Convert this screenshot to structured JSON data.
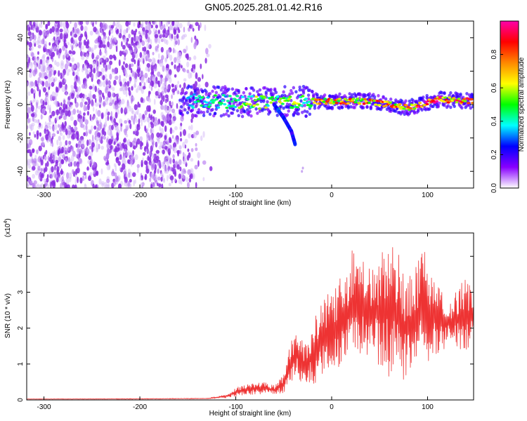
{
  "title": "GN05.2025.281.01.42.R16",
  "colors": {
    "signal_line": "#ee3333",
    "noise_purple": "#8a2be2",
    "axis": "#000000"
  },
  "chart_data": [
    {
      "type": "heatmap",
      "name": "spectrogram",
      "xlabel": "Height of straight line (km)",
      "ylabel": "Frequency (Hz)",
      "xlim": [
        -318,
        148
      ],
      "ylim": [
        -50,
        50
      ],
      "xticks": [
        -300,
        -200,
        -100,
        0,
        100
      ],
      "yticks": [
        -40,
        -20,
        0,
        20,
        40
      ],
      "colorbar": {
        "label": "Normalized spectral amplitude",
        "range": [
          0,
          1
        ],
        "ticks": [
          "0.0",
          "0.2",
          "0.4",
          "0.6",
          "0.8"
        ],
        "colormap": [
          "#ffffff",
          "#8800ff",
          "#0000ff",
          "#00ffff",
          "#00ff00",
          "#ffff00",
          "#ff8800",
          "#ff0000",
          "#ff00aa"
        ]
      },
      "regions": [
        {
          "description": "noise",
          "x_range": [
            -318,
            -130
          ],
          "y_range": [
            -50,
            50
          ],
          "amplitude": 0.15
        },
        {
          "description": "signal band",
          "x_range": [
            -155,
            148
          ],
          "center_frequency_hz": [
            [
              -155,
              2
            ],
            [
              -120,
              2
            ],
            [
              -80,
              1
            ],
            [
              -40,
              2
            ],
            [
              0,
              2
            ],
            [
              40,
              2
            ],
            [
              80,
              -2
            ],
            [
              110,
              3
            ],
            [
              148,
              2
            ]
          ],
          "amplitude": 0.9
        },
        {
          "description": "descending branch",
          "points_hz": [
            [
              -60,
              0
            ],
            [
              -50,
              -8
            ],
            [
              -42,
              -16
            ],
            [
              -38,
              -24
            ]
          ]
        }
      ]
    },
    {
      "type": "line",
      "name": "snr",
      "xlabel": "Height of straight line (km)",
      "ylabel": "SNR (10 * v/v)",
      "multiplier": "(x10",
      "multiplier_exp": "4",
      "xlim": [
        -318,
        148
      ],
      "ylim": [
        0,
        4.65
      ],
      "xticks": [
        -300,
        -200,
        -100,
        0,
        100
      ],
      "yticks": [
        0,
        1,
        2,
        3,
        4
      ],
      "envelope": [
        [
          -318,
          0.02,
          0.03
        ],
        [
          -200,
          0.02,
          0.04
        ],
        [
          -130,
          0.03,
          0.05
        ],
        [
          -110,
          0.05,
          0.15
        ],
        [
          -100,
          0.1,
          0.35
        ],
        [
          -85,
          0.15,
          0.45
        ],
        [
          -70,
          0.15,
          0.5
        ],
        [
          -60,
          0.15,
          0.4
        ],
        [
          -50,
          0.2,
          0.7
        ],
        [
          -42,
          0.4,
          1.7
        ],
        [
          -35,
          0.6,
          1.9
        ],
        [
          -28,
          0.3,
          1.5
        ],
        [
          -15,
          0.5,
          2.5
        ],
        [
          -5,
          0.8,
          2.9
        ],
        [
          5,
          0.8,
          3.3
        ],
        [
          15,
          1.0,
          3.6
        ],
        [
          22,
          1.2,
          4.3
        ],
        [
          40,
          1.2,
          3.7
        ],
        [
          55,
          0.8,
          4.2
        ],
        [
          65,
          0.4,
          4.6
        ],
        [
          75,
          0.3,
          3.7
        ],
        [
          85,
          0.8,
          3.5
        ],
        [
          95,
          1.0,
          4.3
        ],
        [
          110,
          1.2,
          3.2
        ],
        [
          125,
          1.5,
          2.8
        ],
        [
          140,
          1.3,
          3.5
        ],
        [
          148,
          1.8,
          2.9
        ]
      ]
    }
  ]
}
